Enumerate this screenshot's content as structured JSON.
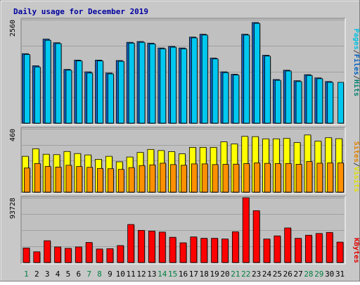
{
  "chart_data": {
    "type": "bar",
    "title": "Daily usage for December 2019",
    "categories": [
      "1",
      "2",
      "3",
      "4",
      "5",
      "6",
      "7",
      "8",
      "9",
      "10",
      "11",
      "12",
      "13",
      "14",
      "15",
      "16",
      "17",
      "18",
      "19",
      "20",
      "21",
      "22",
      "23",
      "24",
      "25",
      "26",
      "27",
      "28",
      "29",
      "30",
      "31"
    ],
    "weekend_days": [
      "1",
      "7",
      "8",
      "14",
      "15",
      "21",
      "22",
      "28",
      "29"
    ],
    "panels": [
      {
        "name": "hits",
        "ymax_label": "2560",
        "ymax": 2560,
        "legend": [
          {
            "text": "Pages",
            "color": "#00c0e0"
          },
          {
            "text": "/",
            "color": "#404040"
          },
          {
            "text": "Files",
            "color": "#0060c0"
          },
          {
            "text": "/",
            "color": "#404040"
          },
          {
            "text": "Hits",
            "color": "#008070"
          }
        ],
        "series": [
          {
            "name": "Files",
            "color": "#1560c0",
            "values": [
              1720,
              1420,
              2080,
              1990,
              1330,
              1560,
              1270,
              1560,
              1240,
              1550,
              2000,
              2020,
              1980,
              1860,
              1900,
              1860,
              2130,
              2200,
              1610,
              1270,
              1210,
              2200,
              2490,
              1680,
              1080,
              1310,
              1050,
              1200,
              1120,
              1030,
              null
            ]
          },
          {
            "name": "Pages",
            "color": "#00c8f0",
            "values": [
              1700,
              1390,
              2050,
              1970,
              1310,
              1540,
              1240,
              1540,
              1220,
              1530,
              1980,
              2000,
              1960,
              1840,
              1880,
              1840,
              2110,
              2180,
              1590,
              1250,
              1190,
              2180,
              2470,
              1660,
              1060,
              1290,
              1030,
              1180,
              1100,
              1010,
              1010
            ]
          }
        ]
      },
      {
        "name": "visits",
        "ymax_label": "460",
        "ymax": 460,
        "legend": [
          {
            "text": "Sites",
            "color": "#e08000"
          },
          {
            "text": "/",
            "color": "#404040"
          },
          {
            "text": "Visits",
            "color": "#e0e000"
          }
        ],
        "series": [
          {
            "name": "Visits",
            "color": "#ffff00",
            "values": [
              260,
              315,
              275,
              272,
              295,
              280,
              270,
              238,
              260,
              220,
              255,
              288,
              310,
              302,
              294,
              278,
              325,
              325,
              325,
              365,
              350,
              405,
              403,
              387,
              387,
              390,
              360,
              415,
              370,
              395,
              388
            ]
          },
          {
            "name": "Sites",
            "color": "#ff9000",
            "values": [
              175,
              208,
              186,
              182,
              195,
              186,
              180,
              172,
              170,
              165,
              178,
              193,
              198,
              210,
              200,
              195,
              205,
              205,
              200,
              202,
              203,
              207,
              212,
              209,
              207,
              208,
              202,
              222,
              210,
              212,
              212
            ]
          }
        ]
      },
      {
        "name": "kbytes",
        "ymax_label": "93728",
        "ymax": 93728,
        "legend": [
          {
            "text": "KBytes",
            "color": "#e00000"
          }
        ],
        "series": [
          {
            "name": "KBytes",
            "color": "#ff0000",
            "values": [
              21000,
              15500,
              31500,
              22500,
              20500,
              22500,
              29000,
              19500,
              20000,
              24500,
              55000,
              46500,
              45500,
              44000,
              36500,
              28500,
              37000,
              35000,
              35000,
              34000,
              44500,
              93728,
              75000,
              34000,
              38500,
              50000,
              35000,
              39500,
              42000,
              43500,
              29500
            ]
          }
        ]
      }
    ]
  }
}
